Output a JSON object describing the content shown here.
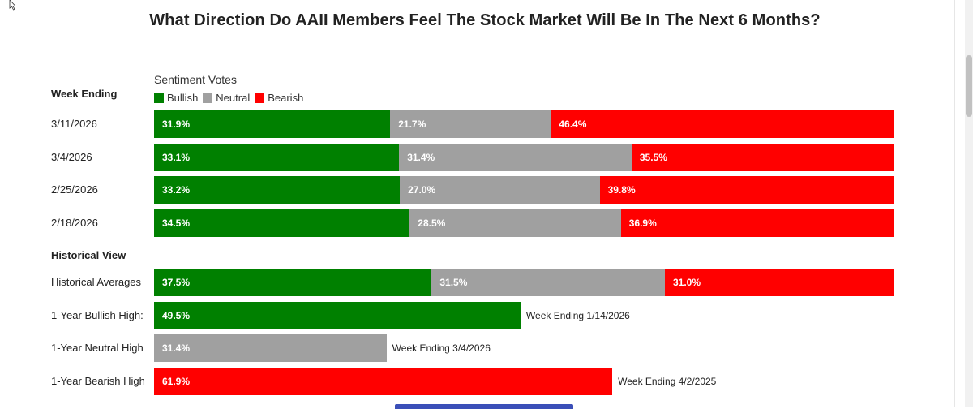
{
  "title": "What Direction Do AAII Members Feel The Stock Market Will Be In The Next 6 Months?",
  "legend": {
    "title": "Sentiment Votes",
    "items": [
      {
        "label": "Bullish",
        "color": "#008000"
      },
      {
        "label": "Neutral",
        "color": "#a0a0a0"
      },
      {
        "label": "Bearish",
        "color": "#ff0000"
      }
    ]
  },
  "sections": {
    "weekly": "Week Ending",
    "historical": "Historical View"
  },
  "chart_data": {
    "type": "bar",
    "orientation": "horizontal",
    "stacked": true,
    "title": "What Direction Do AAII Members Feel The Stock Market Will Be In The Next 6 Months?",
    "series_names": [
      "Bullish",
      "Neutral",
      "Bearish"
    ],
    "colors": [
      "#008000",
      "#a0a0a0",
      "#ff0000"
    ],
    "weekly": [
      {
        "label": "3/11/2026",
        "values": [
          31.9,
          21.7,
          46.4
        ],
        "texts": [
          "31.9%",
          "21.7%",
          "46.4%"
        ]
      },
      {
        "label": "3/4/2026",
        "values": [
          33.1,
          31.4,
          35.5
        ],
        "texts": [
          "33.1%",
          "31.4%",
          "35.5%"
        ]
      },
      {
        "label": "2/25/2026",
        "values": [
          33.2,
          27.0,
          39.8
        ],
        "texts": [
          "33.2%",
          "27.0%",
          "39.8%"
        ]
      },
      {
        "label": "2/18/2026",
        "values": [
          34.5,
          28.5,
          36.9
        ],
        "texts": [
          "34.5%",
          "28.5%",
          "36.9%"
        ]
      }
    ],
    "historical_averages": {
      "label": "Historical Averages",
      "values": [
        37.5,
        31.5,
        31.0
      ],
      "texts": [
        "37.5%",
        "31.5%",
        "31.0%"
      ]
    },
    "highs": [
      {
        "label": "1-Year Bullish High:",
        "value": 49.5,
        "text": "49.5%",
        "series": 0,
        "note": "Week Ending 1/14/2026"
      },
      {
        "label": "1-Year Neutral High",
        "value": 31.4,
        "text": "31.4%",
        "series": 1,
        "note": "Week Ending 3/4/2026"
      },
      {
        "label": "1-Year Bearish High",
        "value": 61.9,
        "text": "61.9%",
        "series": 2,
        "note": "Week Ending 4/2/2025"
      }
    ]
  }
}
